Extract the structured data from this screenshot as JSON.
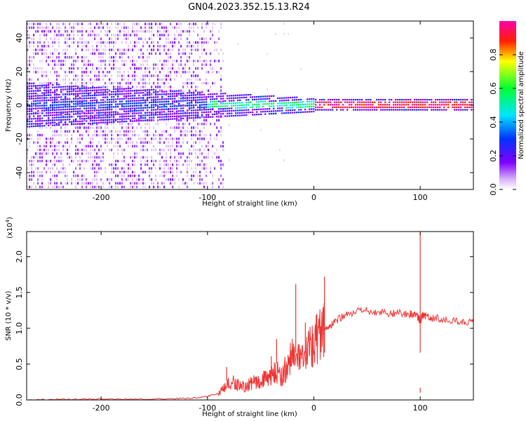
{
  "title": "GN04.2023.352.15.13.R24",
  "chart_data": [
    {
      "type": "heatmap",
      "xlabel": "Height of straight line (km)",
      "ylabel": "Frequency (Hz)",
      "xlim": [
        -270,
        150
      ],
      "ylim": [
        -50,
        50
      ],
      "x_ticks": [
        "-200",
        "-100",
        "0",
        "100"
      ],
      "y_ticks": [
        "-40",
        "-20",
        "0",
        "20",
        "40"
      ],
      "colorbar": {
        "label": "Normalized spectral amplitude",
        "range": [
          0,
          1
        ],
        "ticks": [
          "0.0",
          "0.2",
          "0.4",
          "0.6",
          "0.8"
        ],
        "colors": [
          "#ffffff",
          "#d8b4f8",
          "#8000ff",
          "#0033ff",
          "#00e5ff",
          "#00ff33",
          "#ffff00",
          "#ff2000",
          "#ff00aa"
        ]
      }
    },
    {
      "type": "line",
      "xlabel": "Height of straight line (km)",
      "ylabel": "SNR (10 * v/v)",
      "y_multiplier": "(x10",
      "y_multiplier_exp": "4",
      "multiplier_close": ")",
      "xlim": [
        -270,
        150
      ],
      "ylim": [
        0,
        23500
      ],
      "x_ticks": [
        "-200",
        "-100",
        "0",
        "100"
      ],
      "y_ticks": [
        "0.0",
        "0.5",
        "1.0",
        "1.5",
        "2.0"
      ],
      "series": [
        {
          "color": "#ee3333",
          "x": [
            -270,
            -250,
            -230,
            -210,
            -190,
            -170,
            -150,
            -130,
            -110,
            -100,
            -90,
            -85,
            -80,
            -75,
            -70,
            -65,
            -60,
            -55,
            -50,
            -45,
            -40,
            -35,
            -30,
            -25,
            -20,
            -15,
            -10,
            -5,
            0,
            5,
            10,
            15,
            20,
            30,
            40,
            50,
            60,
            70,
            80,
            90,
            95,
            98,
            100,
            102,
            105,
            110,
            120,
            130,
            140,
            150
          ],
          "y": [
            0,
            50,
            100,
            100,
            150,
            100,
            150,
            200,
            300,
            500,
            900,
            1500,
            2200,
            2500,
            2000,
            1800,
            2200,
            2500,
            2800,
            2900,
            3200,
            4100,
            3200,
            5000,
            6500,
            5600,
            5200,
            7200,
            8500,
            9000,
            10000,
            10200,
            11000,
            11800,
            12300,
            12400,
            12300,
            12100,
            12100,
            12000,
            12000,
            11500,
            11000,
            11800,
            11600,
            11500,
            11300,
            11100,
            10900,
            10700
          ]
        }
      ],
      "spikes": [
        {
          "x": -82,
          "y": 4600
        },
        {
          "x": -40,
          "y": 6100
        },
        {
          "x": -35,
          "y": 8500
        },
        {
          "x": -17,
          "y": 16200
        },
        {
          "x": -8,
          "y": 10800
        },
        {
          "x": 10,
          "y": 17200
        },
        {
          "x": 100,
          "y": 23300
        },
        {
          "x": 100,
          "y": 1700
        }
      ]
    }
  ]
}
